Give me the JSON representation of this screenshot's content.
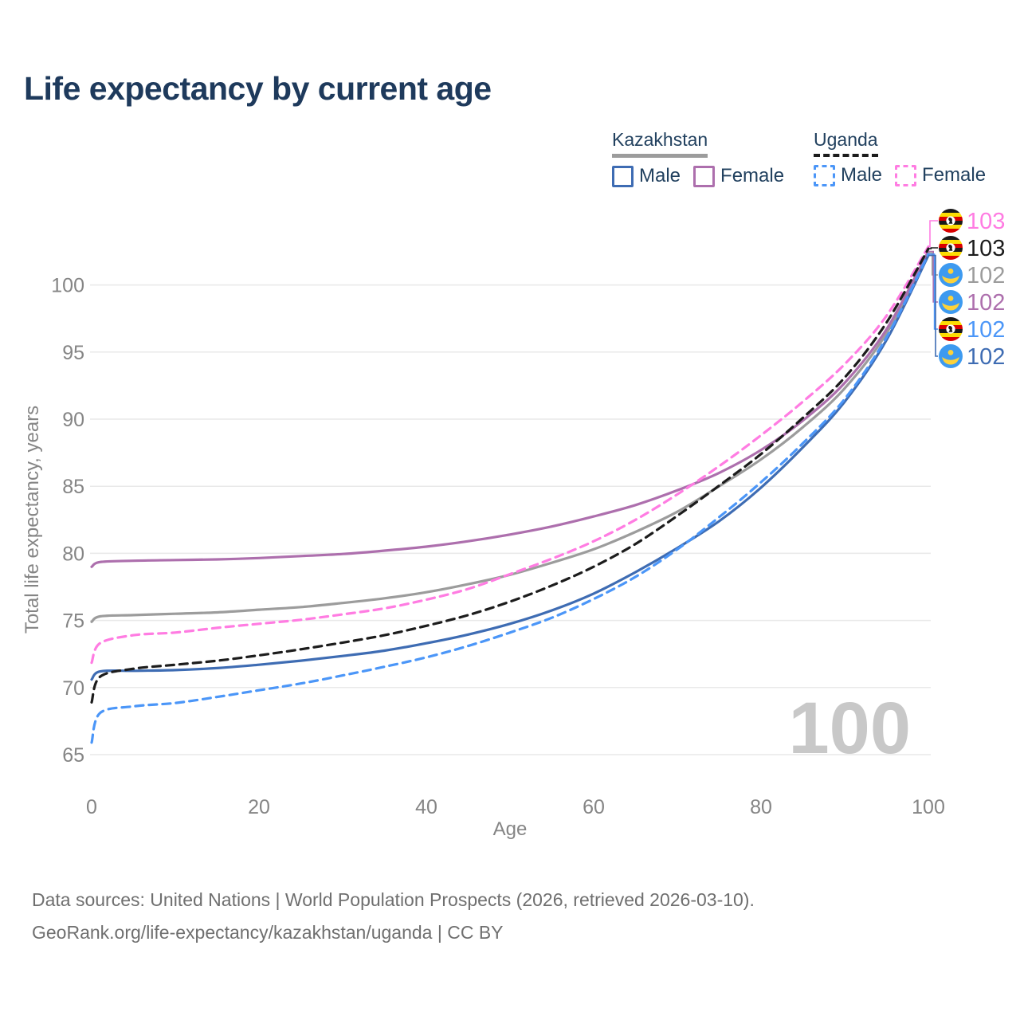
{
  "page": {
    "title": "Life expectancy by current age"
  },
  "legend": {
    "groups": [
      {
        "label": "Kazakhstan",
        "line_style": "solid",
        "line_color": "#9c9c9c",
        "items": [
          {
            "label": "Male",
            "color": "#3e6cb3"
          },
          {
            "label": "Female",
            "color": "#ad6fad"
          }
        ]
      },
      {
        "label": "Uganda",
        "line_style": "dashed",
        "line_color": "#1c1c1c",
        "items": [
          {
            "label": "Male",
            "color": "#4b96f8"
          },
          {
            "label": "Female",
            "color": "#ff7ce2"
          }
        ]
      }
    ]
  },
  "watermark": "100",
  "footer": {
    "line1": "Data sources: United Nations | World Population Prospects (2026, retrieved 2026-03-10).",
    "line2": "GeoRank.org/life-expectancy/kazakhstan/uganda | CC BY"
  },
  "chart_data": {
    "type": "line",
    "title": "Life expectancy by current age",
    "xlabel": "Age",
    "ylabel": "Total life expectancy, years",
    "x_ticks": [
      0,
      20,
      40,
      60,
      80,
      100
    ],
    "y_ticks": [
      65,
      70,
      75,
      80,
      85,
      90,
      95,
      100
    ],
    "xlim": [
      0,
      100
    ],
    "ylim": [
      65,
      103
    ],
    "grid": "horizontal",
    "legend_position": "top-right",
    "ages": [
      0,
      1,
      5,
      10,
      15,
      20,
      25,
      30,
      35,
      40,
      45,
      50,
      55,
      60,
      65,
      70,
      75,
      80,
      85,
      90,
      95,
      100
    ],
    "series": [
      {
        "id": "kz_total",
        "name": "Kazakhstan",
        "country": "Kazakhstan",
        "sex": "Both",
        "color": "#9c9c9c",
        "dash": "solid",
        "values": [
          74.9,
          75.3,
          75.4,
          75.5,
          75.6,
          75.8,
          76.0,
          76.3,
          76.65,
          77.1,
          77.7,
          78.4,
          79.3,
          80.3,
          81.6,
          83.1,
          85.0,
          87.0,
          89.4,
          92.3,
          96.4,
          102.4
        ]
      },
      {
        "id": "kz_female",
        "name": "Kazakhstan Female",
        "country": "Kazakhstan",
        "sex": "Female",
        "color": "#ad6fad",
        "dash": "solid",
        "values": [
          79.0,
          79.35,
          79.45,
          79.5,
          79.55,
          79.65,
          79.8,
          79.95,
          80.2,
          80.5,
          80.9,
          81.4,
          82.0,
          82.75,
          83.6,
          84.7,
          86.0,
          87.7,
          89.9,
          92.7,
          96.7,
          102.5
        ]
      },
      {
        "id": "kz_male",
        "name": "Kazakhstan Male",
        "country": "Kazakhstan",
        "sex": "Male",
        "color": "#3e6cb3",
        "dash": "solid",
        "values": [
          70.6,
          71.2,
          71.25,
          71.3,
          71.45,
          71.7,
          72.0,
          72.35,
          72.75,
          73.3,
          73.95,
          74.75,
          75.75,
          77.0,
          78.6,
          80.4,
          82.4,
          84.9,
          87.9,
          91.3,
          95.9,
          102.2
        ]
      },
      {
        "id": "ug_female",
        "name": "Uganda Female",
        "country": "Uganda",
        "sex": "Female",
        "color": "#ff7ce2",
        "dash": "dashed",
        "values": [
          71.85,
          73.3,
          73.9,
          74.1,
          74.45,
          74.75,
          75.05,
          75.45,
          75.9,
          76.55,
          77.35,
          78.45,
          79.6,
          80.9,
          82.5,
          84.4,
          86.5,
          88.8,
          91.3,
          94.1,
          97.7,
          102.85
        ]
      },
      {
        "id": "ug_total",
        "name": "Uganda",
        "country": "Uganda",
        "sex": "Both",
        "color": "#1c1c1c",
        "dash": "dashed",
        "values": [
          68.9,
          70.8,
          71.4,
          71.7,
          72.0,
          72.4,
          72.85,
          73.35,
          73.9,
          74.6,
          75.4,
          76.4,
          77.6,
          79.0,
          80.7,
          82.8,
          85.05,
          87.4,
          90.1,
          93.1,
          97.2,
          102.7
        ]
      },
      {
        "id": "ug_male",
        "name": "Uganda Male",
        "country": "Uganda",
        "sex": "Male",
        "color": "#4b96f8",
        "dash": "dashed",
        "values": [
          65.9,
          68.1,
          68.6,
          68.85,
          69.3,
          69.8,
          70.3,
          70.9,
          71.55,
          72.25,
          73.1,
          74.1,
          75.2,
          76.6,
          78.25,
          80.3,
          82.7,
          85.3,
          88.2,
          91.5,
          96.1,
          102.3
        ]
      }
    ],
    "end_labels": [
      {
        "series": "ug_female",
        "flag": "uganda",
        "value": "103"
      },
      {
        "series": "ug_total",
        "flag": "uganda",
        "value": "103"
      },
      {
        "series": "kz_total",
        "flag": "kazakhstan",
        "value": "102"
      },
      {
        "series": "kz_female",
        "flag": "kazakhstan",
        "value": "102"
      },
      {
        "series": "ug_male",
        "flag": "uganda",
        "value": "102"
      },
      {
        "series": "kz_male",
        "flag": "kazakhstan",
        "value": "102"
      }
    ]
  }
}
